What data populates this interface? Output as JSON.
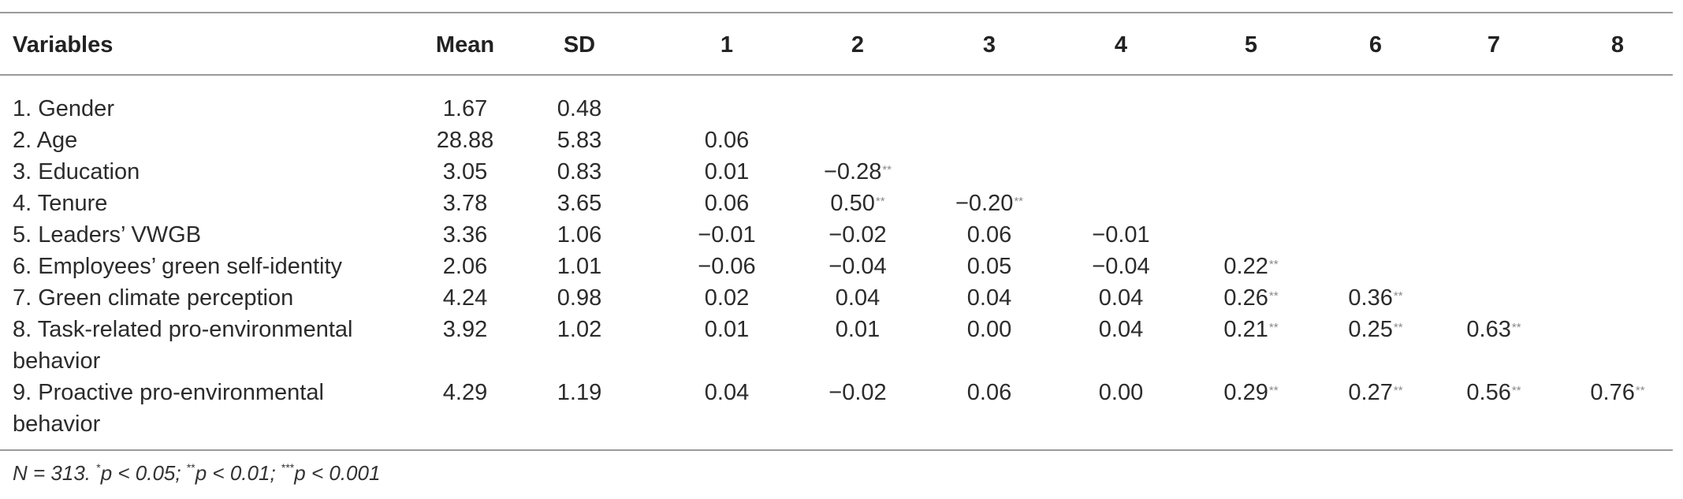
{
  "table": {
    "headers": [
      "Variables",
      "Mean",
      "SD",
      "1",
      "2",
      "3",
      "4",
      "5",
      "6",
      "7",
      "8"
    ],
    "rows": [
      {
        "label": "1. Gender",
        "mean": "1.67",
        "sd": "0.48",
        "cells": []
      },
      {
        "label": "2. Age",
        "mean": "28.88",
        "sd": "5.83",
        "cells": [
          {
            "v": "0.06",
            "s": ""
          }
        ]
      },
      {
        "label": "3. Education",
        "mean": "3.05",
        "sd": "0.83",
        "cells": [
          {
            "v": "0.01",
            "s": ""
          },
          {
            "v": "−0.28",
            "s": "**"
          }
        ]
      },
      {
        "label": "4. Tenure",
        "mean": "3.78",
        "sd": "3.65",
        "cells": [
          {
            "v": "0.06",
            "s": ""
          },
          {
            "v": "0.50",
            "s": "**"
          },
          {
            "v": "−0.20",
            "s": "**"
          }
        ]
      },
      {
        "label": "5. Leaders’ VWGB",
        "mean": "3.36",
        "sd": "1.06",
        "cells": [
          {
            "v": "−0.01",
            "s": ""
          },
          {
            "v": "−0.02",
            "s": ""
          },
          {
            "v": "0.06",
            "s": ""
          },
          {
            "v": "−0.01",
            "s": ""
          }
        ]
      },
      {
        "label": "6. Employees’ green self-identity",
        "mean": "2.06",
        "sd": "1.01",
        "cells": [
          {
            "v": "−0.06",
            "s": ""
          },
          {
            "v": "−0.04",
            "s": ""
          },
          {
            "v": "0.05",
            "s": ""
          },
          {
            "v": "−0.04",
            "s": ""
          },
          {
            "v": "0.22",
            "s": "**"
          }
        ]
      },
      {
        "label": "7. Green climate perception",
        "mean": "4.24",
        "sd": "0.98",
        "cells": [
          {
            "v": "0.02",
            "s": ""
          },
          {
            "v": "0.04",
            "s": ""
          },
          {
            "v": "0.04",
            "s": ""
          },
          {
            "v": "0.04",
            "s": ""
          },
          {
            "v": "0.26",
            "s": "**"
          },
          {
            "v": "0.36",
            "s": "**"
          }
        ]
      },
      {
        "label": "8. Task-related pro-environmental behavior",
        "mean": "3.92",
        "sd": "1.02",
        "cells": [
          {
            "v": "0.01",
            "s": ""
          },
          {
            "v": "0.01",
            "s": ""
          },
          {
            "v": "0.00",
            "s": ""
          },
          {
            "v": "0.04",
            "s": ""
          },
          {
            "v": "0.21",
            "s": "**"
          },
          {
            "v": "0.25",
            "s": "**"
          },
          {
            "v": "0.63",
            "s": "**"
          }
        ]
      },
      {
        "label": "9. Proactive pro-environmental behavior",
        "mean": "4.29",
        "sd": "1.19",
        "cells": [
          {
            "v": "0.04",
            "s": ""
          },
          {
            "v": "−0.02",
            "s": ""
          },
          {
            "v": "0.06",
            "s": ""
          },
          {
            "v": "0.00",
            "s": ""
          },
          {
            "v": "0.29",
            "s": "**"
          },
          {
            "v": "0.27",
            "s": "**"
          },
          {
            "v": "0.56",
            "s": "**"
          },
          {
            "v": "0.76",
            "s": "**"
          }
        ]
      }
    ]
  },
  "note": {
    "n": "N = 313. ",
    "p1_mark": "*",
    "p1": "p < 0.05; ",
    "p2_mark": "**",
    "p2": "p < 0.01; ",
    "p3_mark": "***",
    "p3": "p < 0.001"
  }
}
